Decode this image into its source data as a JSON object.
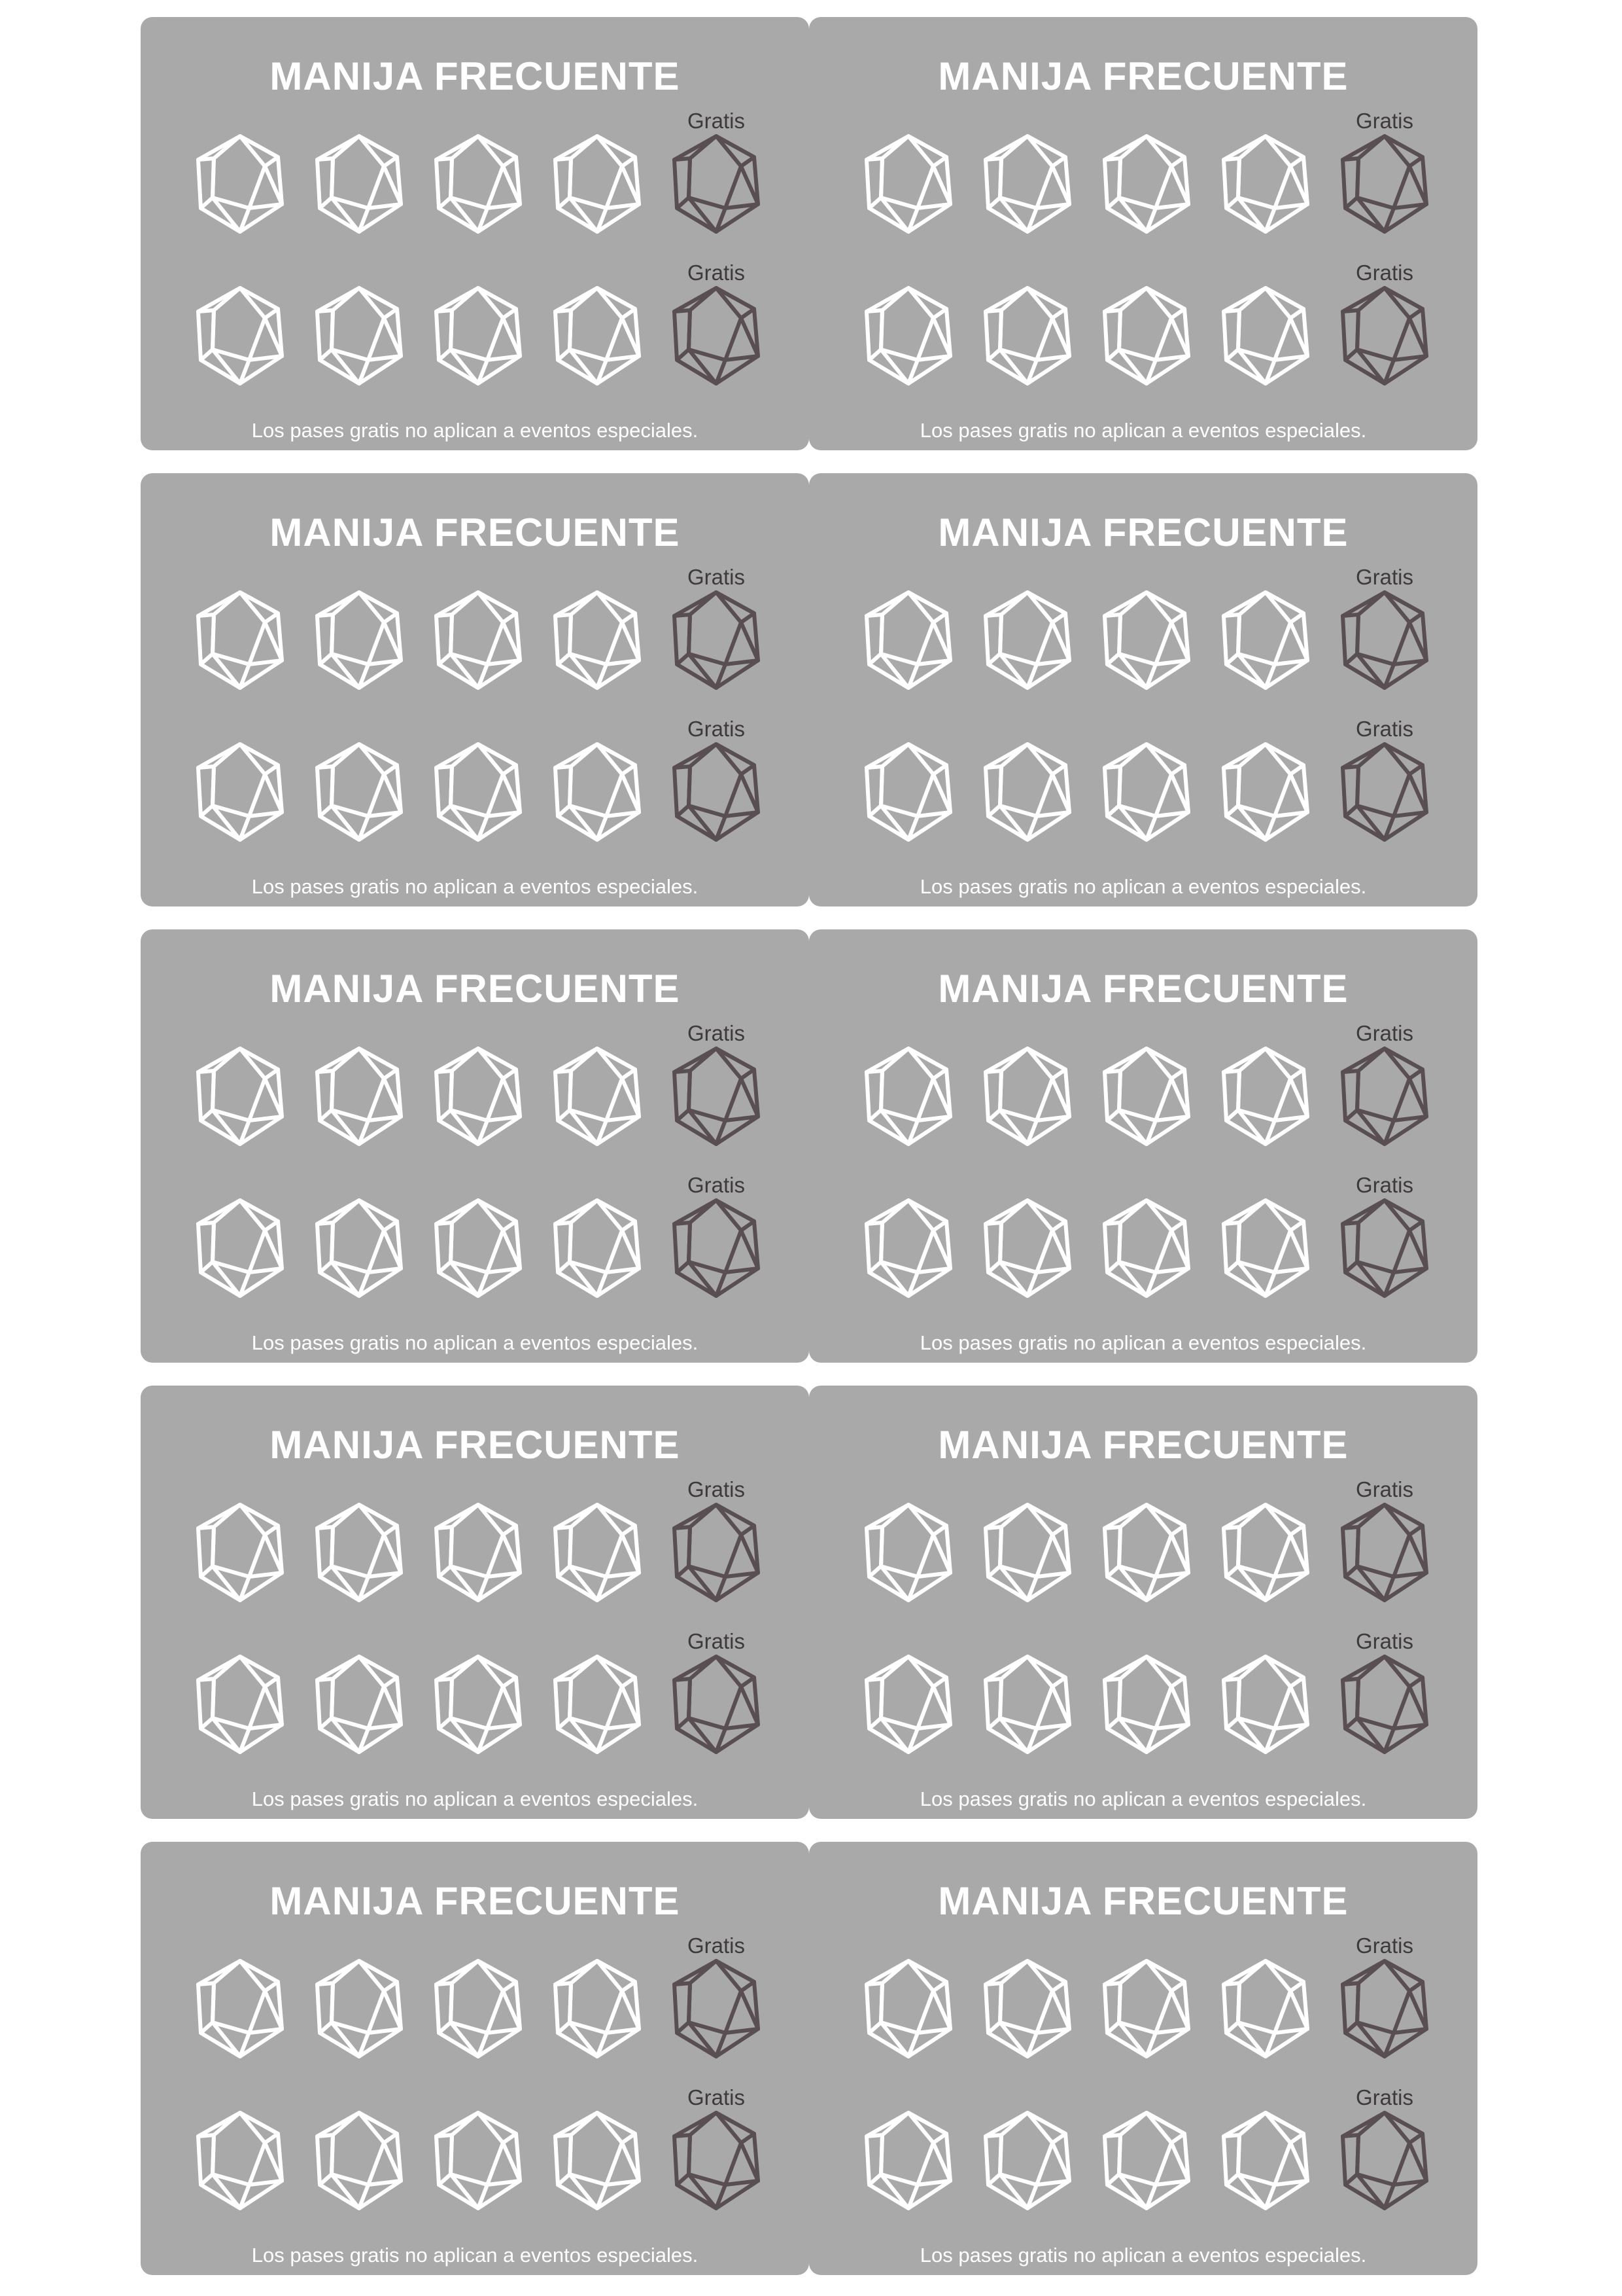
{
  "cards": [
    {
      "title": "MANIJA FRECUENTE",
      "free_label": "Gratis",
      "footer": "Los pases gratis no aplican a eventos especiales."
    },
    {
      "title": "MANIJA FRECUENTE",
      "free_label": "Gratis",
      "footer": "Los pases gratis no aplican a eventos especiales."
    },
    {
      "title": "MANIJA FRECUENTE",
      "free_label": "Gratis",
      "footer": "Los pases gratis no aplican a eventos especiales."
    },
    {
      "title": "MANIJA FRECUENTE",
      "free_label": "Gratis",
      "footer": "Los pases gratis no aplican a eventos especiales."
    },
    {
      "title": "MANIJA FRECUENTE",
      "free_label": "Gratis",
      "footer": "Los pases gratis no aplican a eventos especiales."
    },
    {
      "title": "MANIJA FRECUENTE",
      "free_label": "Gratis",
      "footer": "Los pases gratis no aplican a eventos especiales."
    },
    {
      "title": "MANIJA FRECUENTE",
      "free_label": "Gratis",
      "footer": "Los pases gratis no aplican a eventos especiales."
    },
    {
      "title": "MANIJA FRECUENTE",
      "free_label": "Gratis",
      "footer": "Los pases gratis no aplican a eventos especiales."
    },
    {
      "title": "MANIJA FRECUENTE",
      "free_label": "Gratis",
      "footer": "Los pases gratis no aplican a eventos especiales."
    },
    {
      "title": "MANIJA FRECUENTE",
      "free_label": "Gratis",
      "footer": "Los pases gratis no aplican a eventos especiales."
    }
  ],
  "icons": {
    "stamp": "d20-die-icon",
    "free_stamp": "d20-die-icon"
  },
  "colors": {
    "card_background": "#a9a9a9",
    "stamp_outline": "#ffffff",
    "free_stamp_outline": "#594f52",
    "free_label": "#3e3a3c"
  }
}
